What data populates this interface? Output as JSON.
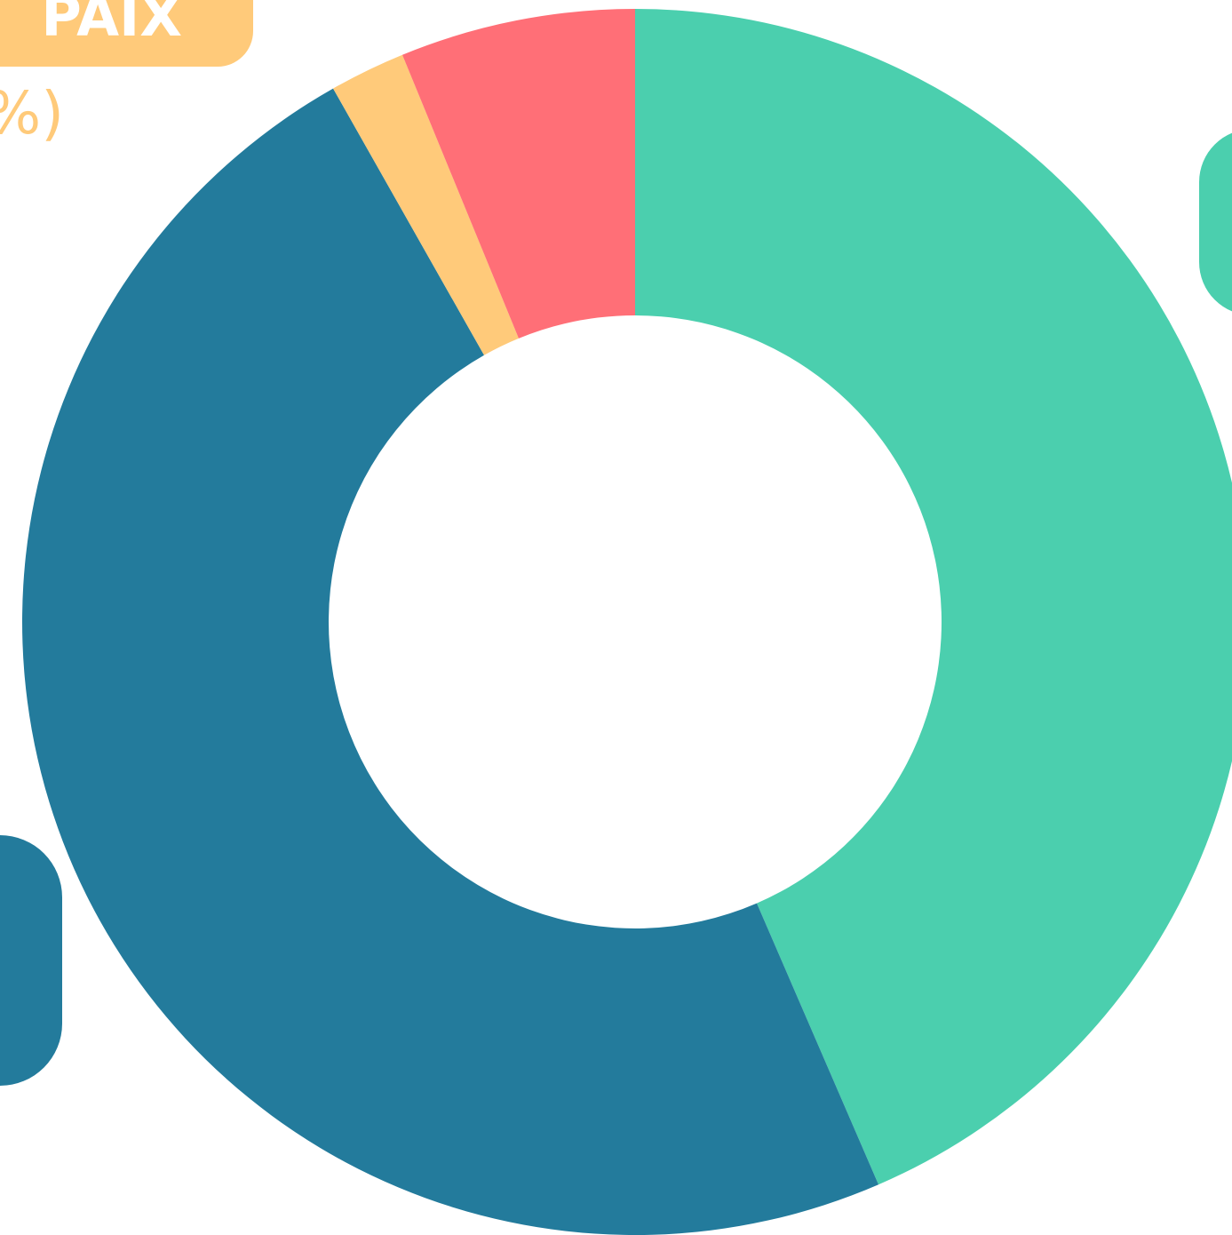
{
  "chart_data": {
    "type": "donut",
    "categories": [
      null,
      null,
      "PAIX",
      null
    ],
    "values": [
      43.5,
      48.3,
      2,
      6.2
    ],
    "value_labels": [
      null,
      null,
      "%)",
      null
    ],
    "colors": [
      "#4bcfae",
      "#237b9c",
      "#ffca7a",
      "#ff6f77"
    ]
  }
}
